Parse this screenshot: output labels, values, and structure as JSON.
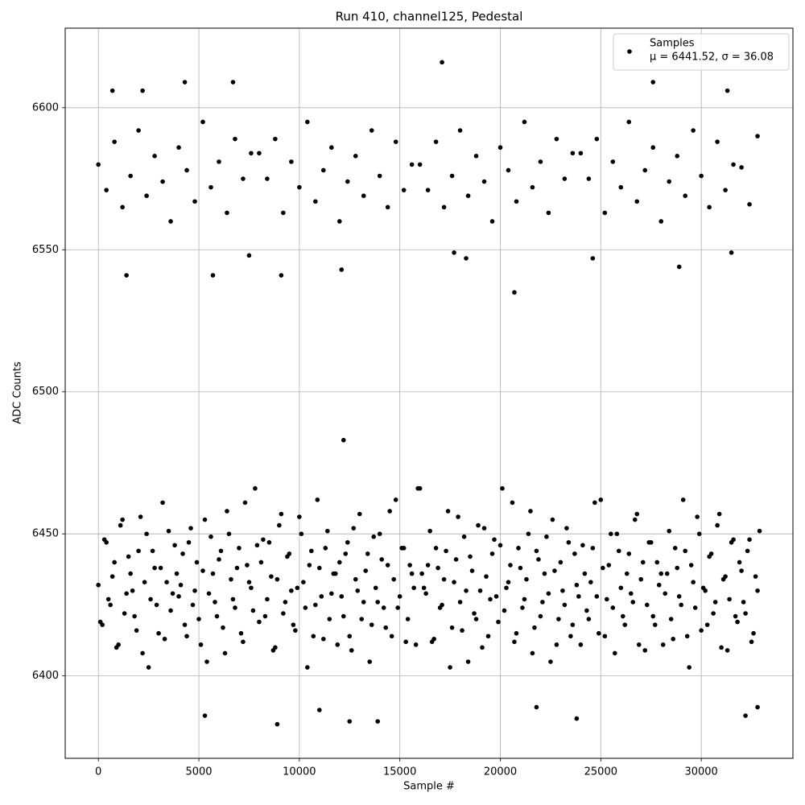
{
  "chart_data": {
    "type": "scatter",
    "title": "Run 410, channel125, Pedestal",
    "x_label": "Sample #",
    "y_label": "ADC Counts",
    "xlim": [
      -1650,
      34560
    ],
    "ylim": [
      6371,
      6628
    ],
    "xticks": [
      0,
      5000,
      10000,
      15000,
      20000,
      25000,
      30000
    ],
    "yticks": [
      6400,
      6450,
      6500,
      6550,
      6600
    ],
    "grid": true,
    "legend_position": "upper right",
    "series": [
      {
        "name": "Samples",
        "legend_note": "μ = 6441.52, σ = 36.08",
        "color": "#000000",
        "x": [
          0,
          200,
          400,
          600,
          800,
          1000,
          1200,
          1400,
          1600,
          1800,
          2000,
          2200,
          2400,
          2600,
          2800,
          3000,
          3200,
          3400,
          3600,
          3800,
          4000,
          4200,
          4400,
          4600,
          4800,
          5000,
          5200,
          5400,
          5600,
          5800,
          6000,
          6200,
          6400,
          6600,
          6800,
          7000,
          7200,
          7400,
          7600,
          7800,
          8000,
          8200,
          8400,
          8600,
          8800,
          9000,
          9200,
          9400,
          9600,
          9800,
          10000,
          10200,
          10400,
          10600,
          10800,
          11000,
          11200,
          11400,
          11600,
          11800,
          12000,
          12200,
          12400,
          12600,
          12800,
          13000,
          13200,
          13400,
          13600,
          13800,
          14000,
          14200,
          14400,
          14600,
          14800,
          15000,
          15200,
          15400,
          15600,
          15800,
          16000,
          16200,
          16400,
          16600,
          16800,
          17000,
          17200,
          17400,
          17600,
          17800,
          18000,
          18200,
          18400,
          18600,
          18800,
          19000,
          19200,
          19400,
          19600,
          19800,
          20000,
          20200,
          20400,
          20600,
          20800,
          21000,
          21200,
          21400,
          21600,
          21800,
          22000,
          22200,
          22400,
          22600,
          22800,
          23000,
          23200,
          23400,
          23600,
          23800,
          24000,
          24200,
          24400,
          24600,
          24800,
          25000,
          25200,
          25400,
          25600,
          25800,
          26000,
          26200,
          26400,
          26600,
          26800,
          27000,
          27200,
          27400,
          27600,
          27800,
          28000,
          28200,
          28400,
          28600,
          28800,
          29000,
          29200,
          29400,
          29600,
          29800,
          30000,
          30200,
          30400,
          30600,
          30800,
          31000,
          31200,
          31400,
          31600,
          31800,
          32000,
          32200,
          32400,
          32600,
          32800,
          100,
          300,
          500,
          700,
          900,
          1100,
          1300,
          1500,
          1700,
          1900,
          2100,
          2300,
          2500,
          2700,
          2900,
          3100,
          3300,
          3500,
          3700,
          3900,
          4100,
          4300,
          4500,
          4700,
          4900,
          5100,
          5300,
          5500,
          5700,
          5900,
          6100,
          6300,
          6500,
          6700,
          6900,
          7100,
          7300,
          7500,
          7700,
          7900,
          8100,
          8300,
          8500,
          8700,
          8900,
          9100,
          9300,
          9500,
          9700,
          9900,
          10100,
          10300,
          10500,
          10700,
          10900,
          11100,
          11300,
          11500,
          11700,
          11900,
          12100,
          12300,
          12500,
          12700,
          12900,
          13100,
          13300,
          13500,
          13700,
          13900,
          14100,
          14300,
          14500,
          14700,
          14900,
          15100,
          15300,
          15500,
          15700,
          15900,
          16100,
          16300,
          16500,
          16700,
          16900,
          17100,
          17300,
          17500,
          17700,
          17900,
          18100,
          18300,
          18500,
          18700,
          18900,
          19100,
          19300,
          19500,
          19700,
          19900,
          20100,
          20300,
          20500,
          20700,
          20900,
          21100,
          21300,
          21500,
          21700,
          21900,
          22100,
          22300,
          22500,
          22700,
          22900,
          23100,
          23300,
          23500,
          23700,
          23900,
          24100,
          24300,
          24500,
          24700,
          24900,
          25100,
          25300,
          25500,
          25700,
          25900,
          26100,
          26300,
          26500,
          26700,
          26900,
          27100,
          27300,
          27500,
          27700,
          27900,
          28100,
          28300,
          28500,
          28700,
          28900,
          29100,
          29300,
          29500,
          29700,
          29900,
          30100,
          30300,
          30500,
          30700,
          30900,
          31100,
          31300,
          31500,
          31700,
          31900,
          32100,
          32300,
          32500,
          32700,
          32900,
          0,
          400,
          800,
          1200,
          1600,
          2000,
          2400,
          2800,
          3200,
          3600,
          4000,
          4400,
          4800,
          5200,
          5600,
          6000,
          6400,
          6800,
          7200,
          7600,
          8000,
          8400,
          8800,
          9200,
          9600,
          10000,
          10400,
          10800,
          11200,
          11600,
          12000,
          12400,
          12800,
          13200,
          13600,
          14000,
          14400,
          14800,
          15200,
          15600,
          16000,
          16400,
          16800,
          17200,
          17600,
          18000,
          18400,
          18800,
          19200,
          19600,
          20000,
          20400,
          20800,
          21200,
          21600,
          22000,
          22400,
          22800,
          23200,
          23600,
          24000,
          24400,
          24800,
          25200,
          25600,
          26000,
          26400,
          26800,
          27200,
          27600,
          28000,
          28400,
          28800,
          29200,
          29600,
          30000,
          30400,
          30800,
          31200,
          31600,
          32000,
          32400,
          32800,
          17100,
          700,
          2200,
          4300,
          6700,
          27600,
          31300,
          1400,
          5700,
          9100,
          12100,
          20700,
          28900,
          24600,
          7500,
          17700,
          18300,
          31500,
          12200,
          12500,
          8900,
          13900,
          23800,
          5300,
          32200,
          11000,
          32800,
          21800
        ],
        "values": [
          6432,
          6418,
          6447,
          6425,
          6440,
          6411,
          6455,
          6429,
          6436,
          6421,
          6444,
          6408,
          6450,
          6427,
          6438,
          6415,
          6461,
          6433,
          6423,
          6446,
          6428,
          6443,
          6414,
          6452,
          6430,
          6420,
          6437,
          6405,
          6449,
          6426,
          6441,
          6417,
          6458,
          6434,
          6424,
          6445,
          6412,
          6439,
          6431,
          6466,
          6419,
          6448,
          6427,
          6435,
          6410,
          6453,
          6422,
          6442,
          6430,
          6416,
          6456,
          6433,
          6403,
          6444,
          6425,
          6438,
          6413,
          6451,
          6429,
          6436,
          6440,
          6421,
          6447,
          6409,
          6434,
          6457,
          6426,
          6443,
          6418,
          6431,
          6450,
          6424,
          6439,
          6414,
          6462,
          6428,
          6445,
          6420,
          6436,
          6411,
          6466,
          6431,
          6439,
          6412,
          6445,
          6424,
          6434,
          6458,
          6417,
          6441,
          6426,
          6449,
          6405,
          6437,
          6420,
          6430,
          6452,
          6414,
          6443,
          6428,
          6446,
          6423,
          6433,
          6461,
          6415,
          6438,
          6427,
          6450,
          6408,
          6444,
          6421,
          6436,
          6429,
          6455,
          6411,
          6440,
          6425,
          6447,
          6418,
          6432,
          6411,
          6436,
          6420,
          6445,
          6428,
          6462,
          6414,
          6439,
          6424,
          6450,
          6431,
          6418,
          6443,
          6426,
          6457,
          6434,
          6409,
          6447,
          6421,
          6440,
          6436,
          6429,
          6451,
          6413,
          6438,
          6425,
          6444,
          6403,
          6433,
          6456,
          6416,
          6430,
          6442,
          6422,
          6453,
          6410,
          6435,
          6427,
          6448,
          6419,
          6437,
          6422,
          6448,
          6415,
          6430,
          6419,
          6448,
          6427,
          6435,
          6410,
          6453,
          6422,
          6442,
          6430,
          6416,
          6456,
          6433,
          6403,
          6444,
          6425,
          6438,
          6413,
          6451,
          6429,
          6436,
          6432,
          6418,
          6447,
          6425,
          6440,
          6411,
          6455,
          6429,
          6436,
          6421,
          6444,
          6408,
          6450,
          6427,
          6438,
          6415,
          6461,
          6433,
          6423,
          6446,
          6440,
          6421,
          6447,
          6409,
          6434,
          6457,
          6426,
          6443,
          6418,
          6431,
          6450,
          6424,
          6439,
          6414,
          6462,
          6428,
          6445,
          6420,
          6436,
          6411,
          6428,
          6443,
          6414,
          6452,
          6430,
          6420,
          6437,
          6405,
          6449,
          6426,
          6441,
          6417,
          6458,
          6434,
          6424,
          6445,
          6412,
          6439,
          6431,
          6466,
          6436,
          6429,
          6451,
          6413,
          6438,
          6425,
          6444,
          6403,
          6433,
          6456,
          6416,
          6430,
          6442,
          6422,
          6453,
          6410,
          6435,
          6427,
          6448,
          6419,
          6466,
          6431,
          6439,
          6412,
          6445,
          6424,
          6434,
          6458,
          6417,
          6441,
          6426,
          6449,
          6405,
          6437,
          6420,
          6430,
          6452,
          6414,
          6443,
          6428,
          6446,
          6423,
          6433,
          6461,
          6415,
          6438,
          6427,
          6450,
          6408,
          6444,
          6421,
          6436,
          6429,
          6455,
          6411,
          6440,
          6425,
          6447,
          6418,
          6432,
          6411,
          6436,
          6420,
          6445,
          6428,
          6462,
          6414,
          6439,
          6424,
          6450,
          6431,
          6418,
          6443,
          6426,
          6457,
          6434,
          6409,
          6447,
          6421,
          6440,
          6426,
          6444,
          6412,
          6435,
          6451,
          6580,
          6571,
          6588,
          6565,
          6576,
          6592,
          6569,
          6583,
          6574,
          6560,
          6586,
          6578,
          6567,
          6595,
          6572,
          6581,
          6563,
          6589,
          6575,
          6584,
          6584,
          6575,
          6589,
          6563,
          6581,
          6572,
          6595,
          6567,
          6578,
          6586,
          6560,
          6574,
          6583,
          6569,
          6592,
          6576,
          6565,
          6588,
          6571,
          6580,
          6580,
          6571,
          6588,
          6565,
          6576,
          6592,
          6569,
          6583,
          6574,
          6560,
          6586,
          6578,
          6567,
          6595,
          6572,
          6581,
          6563,
          6589,
          6575,
          6584,
          6584,
          6575,
          6589,
          6563,
          6581,
          6572,
          6595,
          6567,
          6578,
          6586,
          6560,
          6574,
          6583,
          6569,
          6592,
          6576,
          6565,
          6588,
          6571,
          6580,
          6579,
          6566,
          6590,
          6616,
          6606,
          6606,
          6609,
          6609,
          6609,
          6606,
          6541,
          6541,
          6541,
          6543,
          6535,
          6544,
          6547,
          6548,
          6549,
          6547,
          6549,
          6483,
          6384,
          6383,
          6384,
          6385,
          6386,
          6386,
          6388,
          6389,
          6389
        ]
      }
    ]
  }
}
